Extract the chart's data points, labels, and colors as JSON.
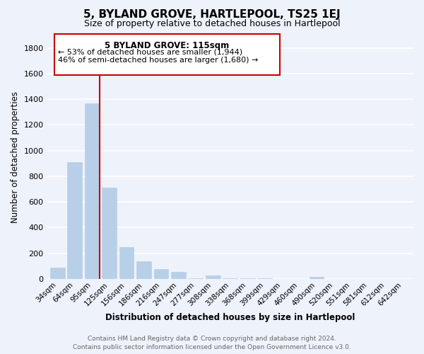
{
  "title": "5, BYLAND GROVE, HARTLEPOOL, TS25 1EJ",
  "subtitle": "Size of property relative to detached houses in Hartlepool",
  "xlabel": "Distribution of detached houses by size in Hartlepool",
  "ylabel": "Number of detached properties",
  "categories": [
    "34sqm",
    "64sqm",
    "95sqm",
    "125sqm",
    "156sqm",
    "186sqm",
    "216sqm",
    "247sqm",
    "277sqm",
    "308sqm",
    "338sqm",
    "368sqm",
    "399sqm",
    "429sqm",
    "460sqm",
    "490sqm",
    "520sqm",
    "551sqm",
    "581sqm",
    "612sqm",
    "642sqm"
  ],
  "values": [
    90,
    910,
    1370,
    710,
    250,
    140,
    80,
    55,
    5,
    30,
    5,
    5,
    5,
    0,
    0,
    15,
    0,
    0,
    0,
    0,
    0
  ],
  "bar_color": "#b8cfe8",
  "marker_line_color": "#cc0000",
  "ylim": [
    0,
    1900
  ],
  "yticks": [
    0,
    200,
    400,
    600,
    800,
    1000,
    1200,
    1400,
    1600,
    1800
  ],
  "annotation_title": "5 BYLAND GROVE: 115sqm",
  "annotation_line1": "← 53% of detached houses are smaller (1,944)",
  "annotation_line2": "46% of semi-detached houses are larger (1,680) →",
  "annotation_box_color": "#ffffff",
  "annotation_box_edge": "#cc0000",
  "footer_line1": "Contains HM Land Registry data © Crown copyright and database right 2024.",
  "footer_line2": "Contains public sector information licensed under the Open Government Licence v3.0.",
  "bg_color": "#eef2fb",
  "plot_bg_color": "#eef2fb"
}
